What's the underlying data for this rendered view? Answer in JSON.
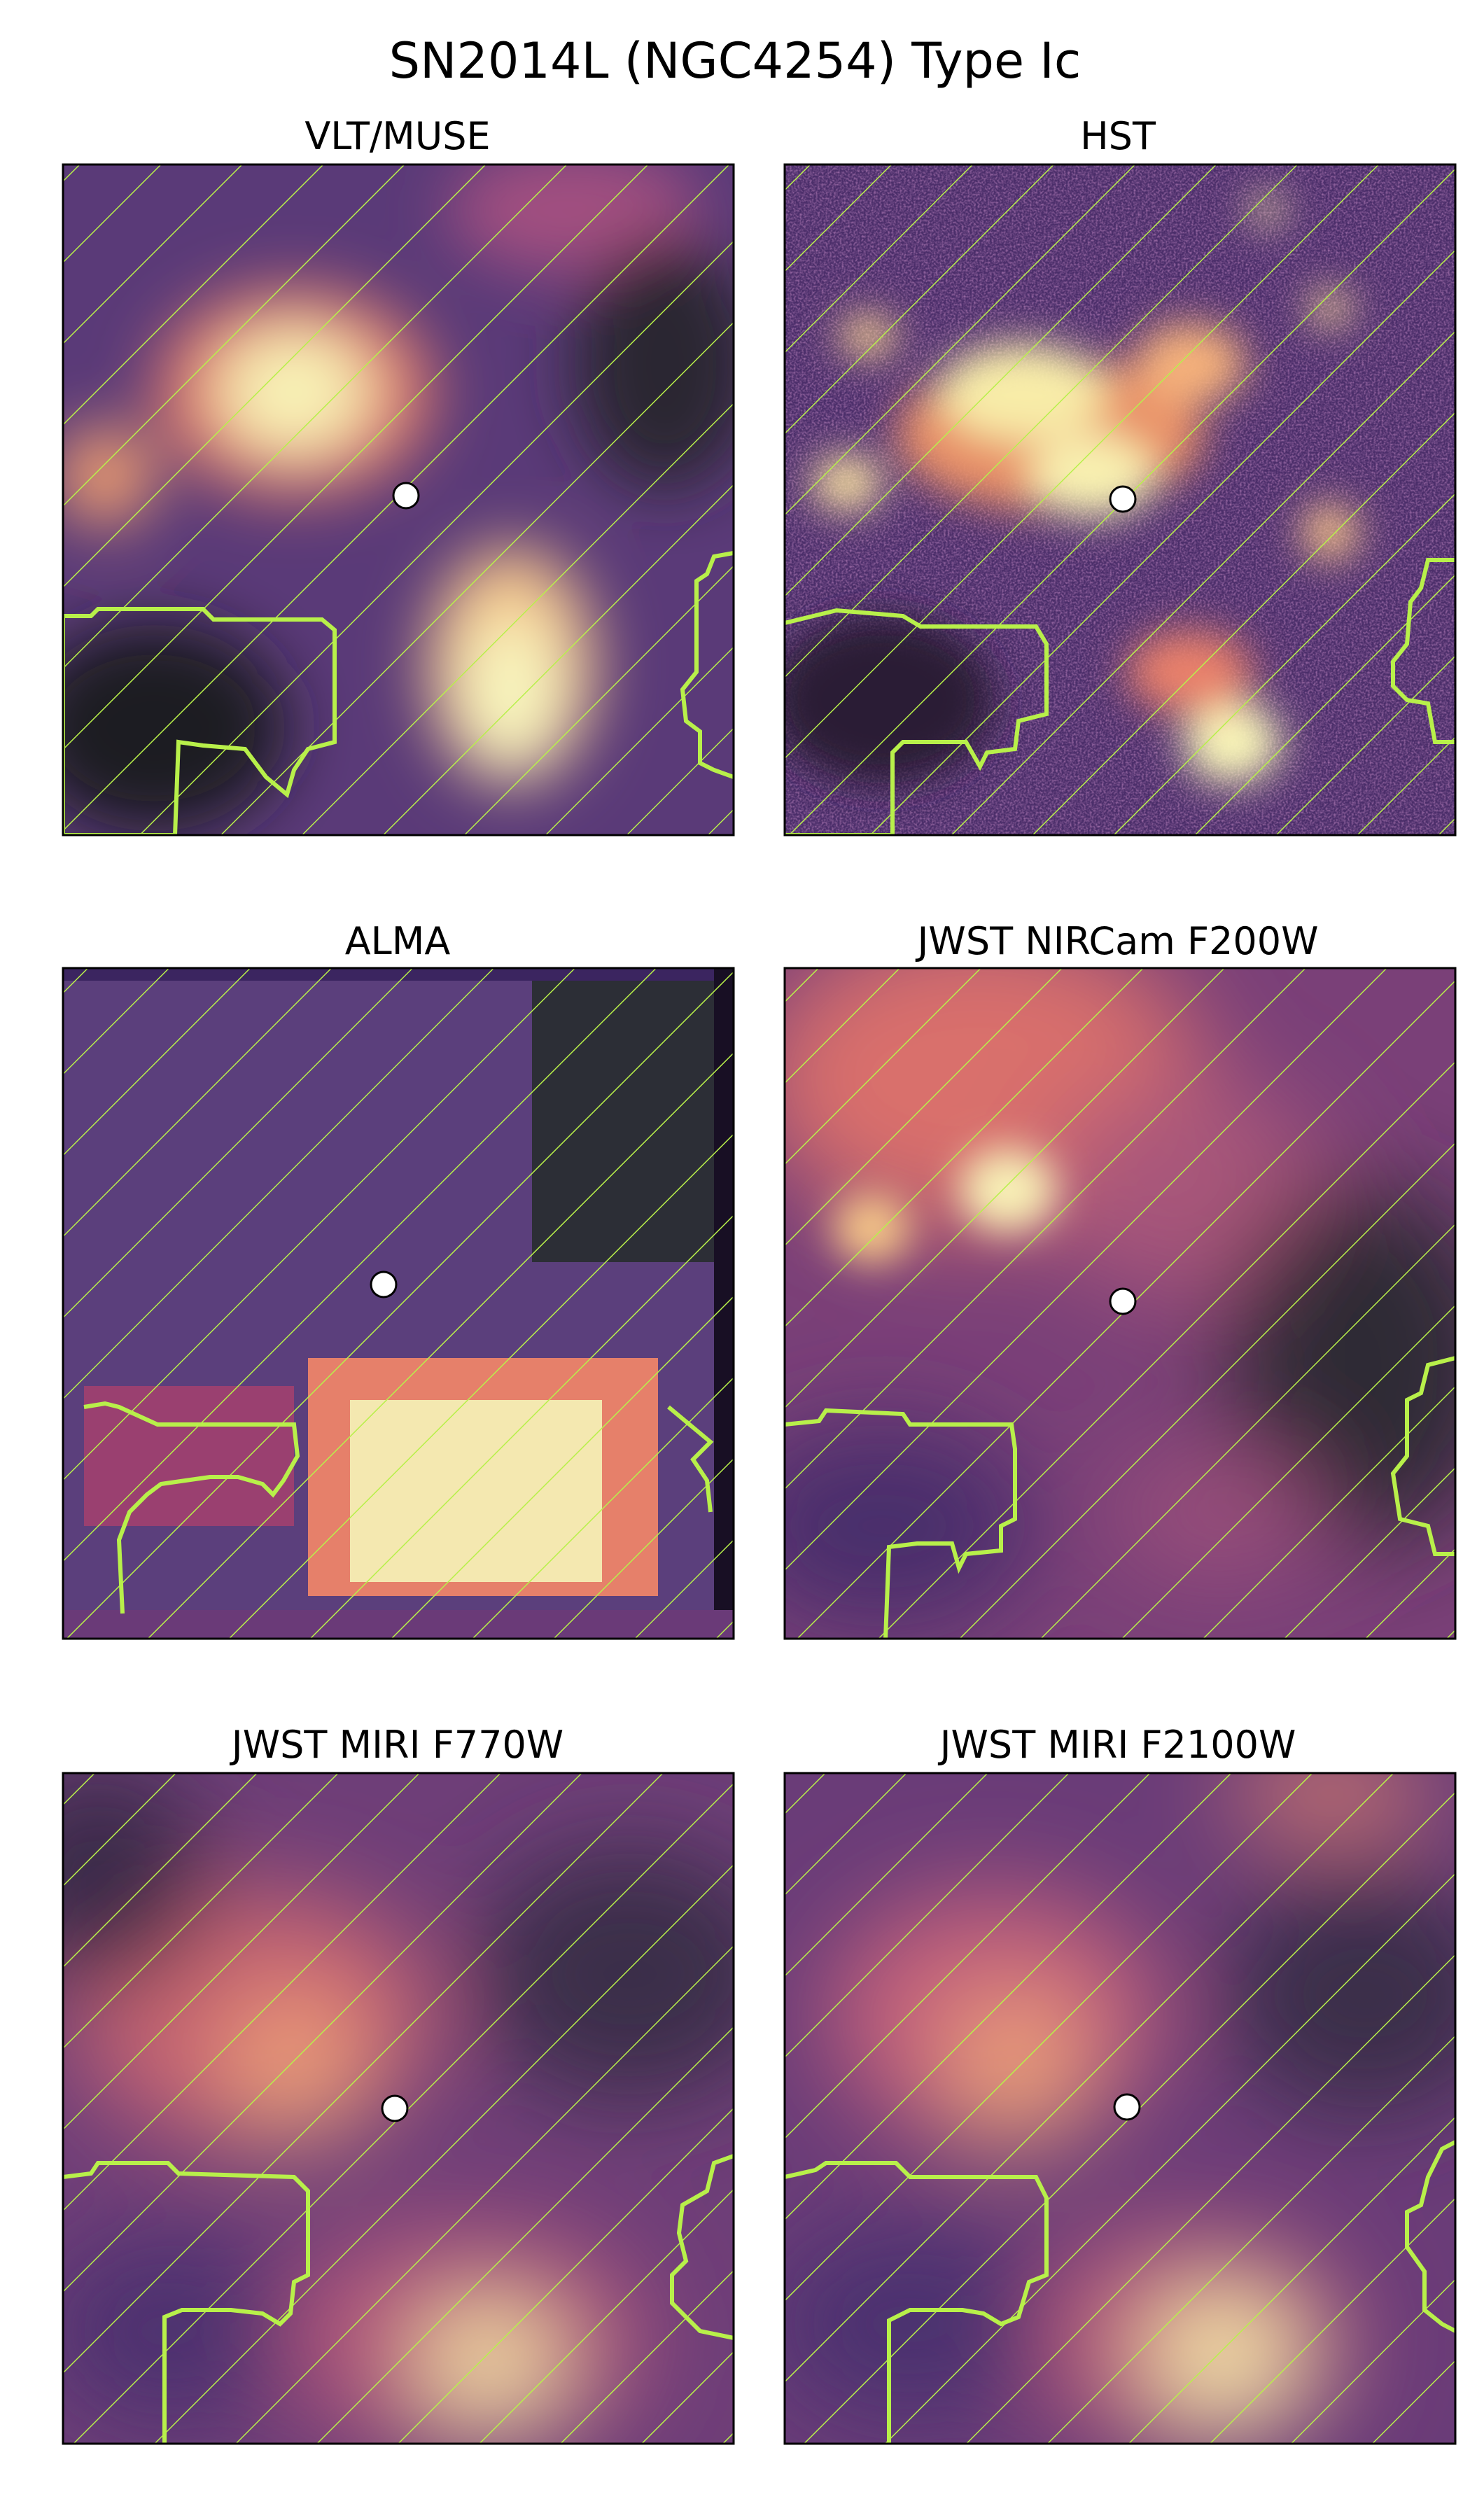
{
  "figure": {
    "title": "SN2014L (NGC4254) Type Ic",
    "panels": [
      {
        "title": "VLT/MUSE",
        "image": "vlt-muse-image"
      },
      {
        "title": "HST",
        "image": "hst-image"
      },
      {
        "title": "ALMA",
        "image": "alma-image"
      },
      {
        "title": "JWST NIRCam F200W",
        "image": "nircam-f200w-image"
      },
      {
        "title": "JWST MIRI F770W",
        "image": "miri-f770w-image"
      },
      {
        "title": "JWST MIRI F2100W",
        "image": "miri-f2100w-image"
      }
    ]
  },
  "colors": {
    "hatch": "#b8f04a",
    "contour": "#b8f04a",
    "colormap": [
      "#1a1a1f",
      "#4b2b6e",
      "#8a3f85",
      "#d8616a",
      "#f6a072",
      "#f2f0b0"
    ],
    "marker_fill": "#ffffff",
    "marker_edge": "#000000"
  }
}
